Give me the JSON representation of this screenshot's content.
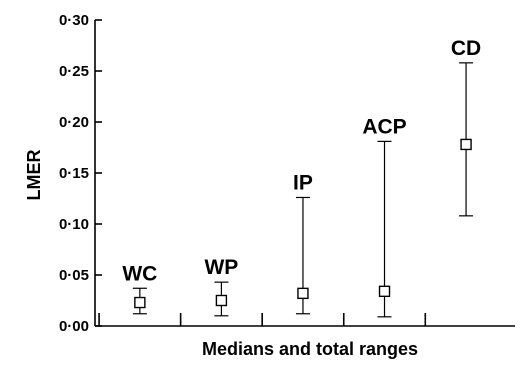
{
  "chart_data": {
    "type": "range",
    "title": "",
    "ylabel": "LMER",
    "xlabel": "Medians and total ranges",
    "ylim": [
      0,
      0.3
    ],
    "yticks": [
      "0·00",
      "0·05",
      "0·10",
      "0·15",
      "0·20",
      "0·25",
      "0·30"
    ],
    "yticks_values": [
      0,
      0.05,
      0.1,
      0.15,
      0.2,
      0.25,
      0.3
    ],
    "grid": false,
    "categories": [
      "WC",
      "WP",
      "IP",
      "ACP",
      "CD"
    ],
    "series": [
      {
        "median": [
          0.023,
          0.025,
          0.032,
          0.034,
          0.178
        ],
        "min": [
          0.012,
          0.01,
          0.012,
          0.009,
          0.108
        ],
        "max": [
          0.037,
          0.043,
          0.126,
          0.181,
          0.258
        ]
      }
    ]
  }
}
